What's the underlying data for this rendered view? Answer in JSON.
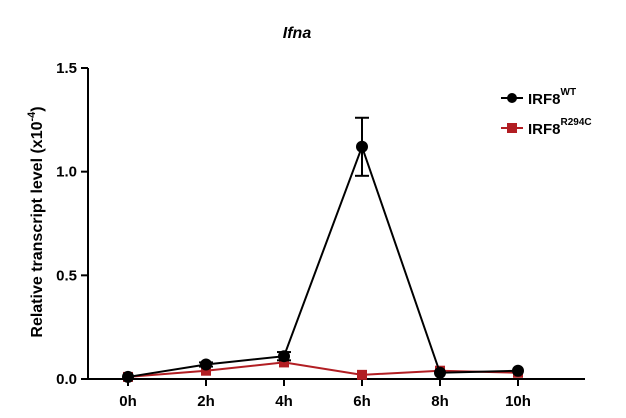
{
  "chart_data": {
    "type": "line",
    "title": "Ifna",
    "xlabel": "",
    "ylabel": "Relative transcript level (x10",
    "ylabel_exponent": "-4",
    "ylabel_suffix": ")",
    "categories": [
      "0h",
      "2h",
      "4h",
      "6h",
      "8h",
      "10h"
    ],
    "y_ticks": [
      "0.0",
      "0.5",
      "1.0",
      "1.5"
    ],
    "ylim": [
      0,
      1.5
    ],
    "grid": false,
    "legend_position": "top-right",
    "series": [
      {
        "name": "IRF8",
        "name_sup": "WT",
        "marker": "circle",
        "color": "#000000",
        "values": [
          0.01,
          0.07,
          0.11,
          1.12,
          0.03,
          0.04
        ],
        "error": [
          0,
          0.01,
          0.02,
          0.14,
          0,
          0
        ]
      },
      {
        "name": "IRF8",
        "name_sup": "R294C",
        "marker": "square",
        "color": "#b21e23",
        "values": [
          0.01,
          0.04,
          0.08,
          0.02,
          0.04,
          0.03
        ],
        "error": [
          0,
          0,
          0,
          0,
          0,
          0
        ]
      }
    ]
  }
}
